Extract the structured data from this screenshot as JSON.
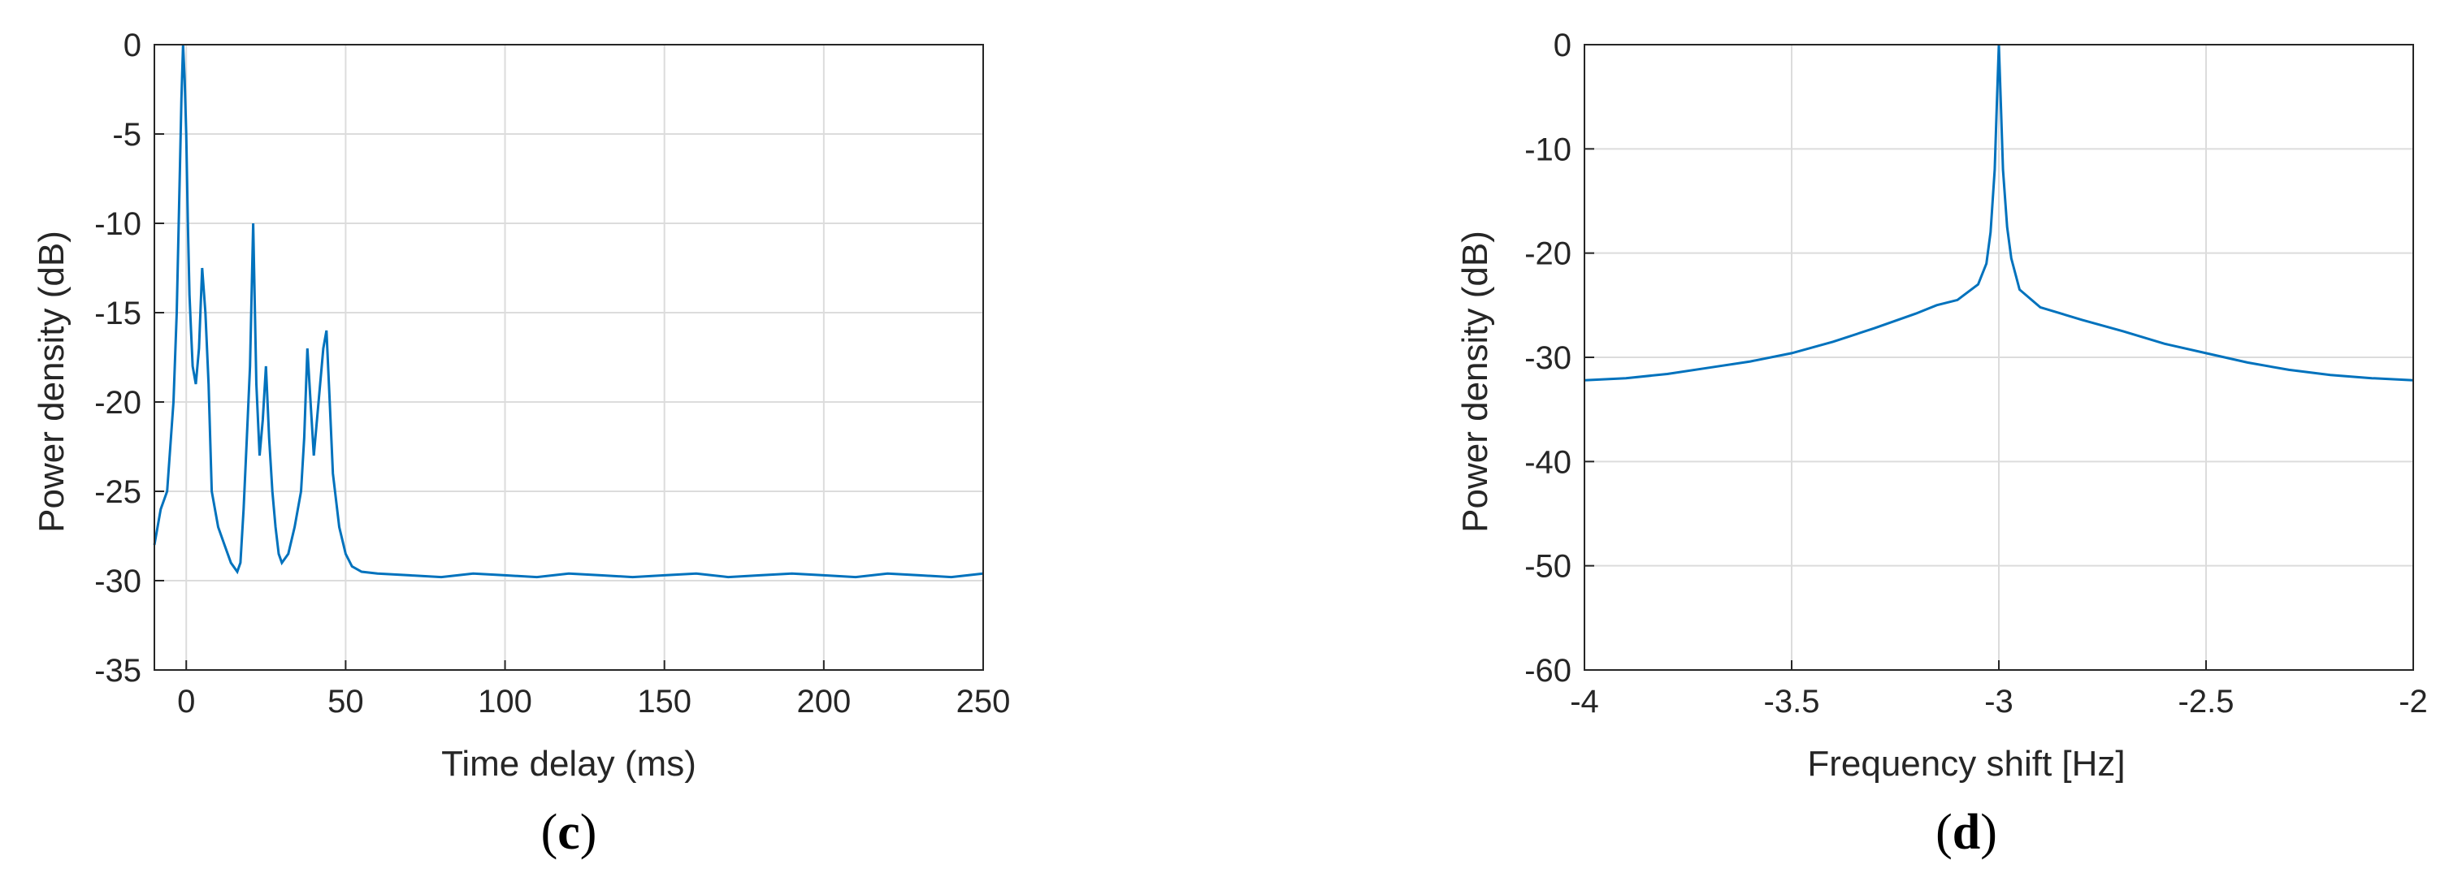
{
  "chart_data": [
    {
      "type": "line",
      "panel_label": "c",
      "xlabel": "Time delay (ms)",
      "ylabel": "Power density (dB)",
      "xlim": [
        -10,
        250
      ],
      "ylim": [
        -35,
        0
      ],
      "xticks": [
        0,
        50,
        100,
        150,
        200,
        250
      ],
      "xtick_labels": [
        "0",
        "50",
        "100",
        "150",
        "200",
        "250"
      ],
      "yticks": [
        0,
        -5,
        -10,
        -15,
        -20,
        -25,
        -30,
        -35
      ],
      "ytick_labels": [
        "0",
        "-5",
        "-10",
        "-15",
        "-20",
        "-25",
        "-30",
        "-35"
      ],
      "grid": true,
      "color": "#0072BD",
      "series": [
        {
          "x": [
            -10,
            -8,
            -6,
            -4,
            -3,
            -2,
            -1.5,
            -1,
            -0.5,
            0,
            0.5,
            1,
            1.5,
            2,
            3,
            4,
            5,
            6,
            7,
            8,
            10,
            12,
            14,
            16,
            17,
            18,
            19,
            20,
            21,
            22,
            23,
            24,
            25,
            26,
            27,
            28,
            29,
            30,
            32,
            34,
            36,
            37,
            38,
            39,
            40,
            41,
            42,
            43,
            44,
            45,
            46,
            48,
            50,
            52,
            55,
            60,
            70,
            80,
            90,
            100,
            110,
            120,
            130,
            140,
            150,
            160,
            170,
            180,
            190,
            200,
            210,
            220,
            230,
            240,
            250
          ],
          "y": [
            -28,
            -26,
            -25,
            -20,
            -15,
            -7,
            -3,
            0,
            -2,
            -5,
            -10,
            -14,
            -16,
            -18,
            -19,
            -17,
            -12.5,
            -15,
            -19,
            -25,
            -27,
            -28,
            -29,
            -29.5,
            -29,
            -26,
            -22,
            -18,
            -10,
            -19,
            -23,
            -21,
            -18,
            -22,
            -25,
            -27,
            -28.5,
            -29,
            -28.5,
            -27,
            -25,
            -22,
            -17,
            -20,
            -23,
            -21,
            -19,
            -17,
            -16,
            -20,
            -24,
            -27,
            -28.5,
            -29.2,
            -29.5,
            -29.6,
            -29.7,
            -29.8,
            -29.6,
            -29.7,
            -29.8,
            -29.6,
            -29.7,
            -29.8,
            -29.7,
            -29.6,
            -29.8,
            -29.7,
            -29.6,
            -29.7,
            -29.8,
            -29.6,
            -29.7,
            -29.8,
            -29.6
          ]
        }
      ]
    },
    {
      "type": "line",
      "panel_label": "d",
      "xlabel": "Frequency shift [Hz]",
      "ylabel": "Power density (dB)",
      "xlim": [
        -4,
        -2
      ],
      "ylim": [
        -60,
        0
      ],
      "xticks": [
        -4,
        -3.5,
        -3,
        -2.5,
        -2
      ],
      "xtick_labels": [
        "-4",
        "-3.5",
        "-3",
        "-2.5",
        "-2"
      ],
      "yticks": [
        0,
        -10,
        -20,
        -30,
        -40,
        -50,
        -60
      ],
      "ytick_labels": [
        "0",
        "-10",
        "-20",
        "-30",
        "-40",
        "-50",
        "-60"
      ],
      "grid": true,
      "color": "#0072BD",
      "series": [
        {
          "x": [
            -4,
            -3.9,
            -3.8,
            -3.7,
            -3.6,
            -3.5,
            -3.4,
            -3.3,
            -3.2,
            -3.15,
            -3.1,
            -3.05,
            -3.03,
            -3.02,
            -3.01,
            -3.005,
            -3.0,
            -2.995,
            -2.99,
            -2.98,
            -2.97,
            -2.95,
            -2.9,
            -2.85,
            -2.8,
            -2.7,
            -2.6,
            -2.5,
            -2.4,
            -2.3,
            -2.2,
            -2.1,
            -2
          ],
          "y": [
            -32.2,
            -32.0,
            -31.6,
            -31.0,
            -30.4,
            -29.6,
            -28.5,
            -27.2,
            -25.8,
            -25.0,
            -24.5,
            -23.0,
            -21.0,
            -18.0,
            -12.0,
            -6.0,
            0,
            -6.0,
            -12.0,
            -17.5,
            -20.5,
            -23.5,
            -25.2,
            -25.8,
            -26.4,
            -27.5,
            -28.7,
            -29.6,
            -30.5,
            -31.2,
            -31.7,
            -32.0,
            -32.2
          ]
        }
      ]
    }
  ]
}
